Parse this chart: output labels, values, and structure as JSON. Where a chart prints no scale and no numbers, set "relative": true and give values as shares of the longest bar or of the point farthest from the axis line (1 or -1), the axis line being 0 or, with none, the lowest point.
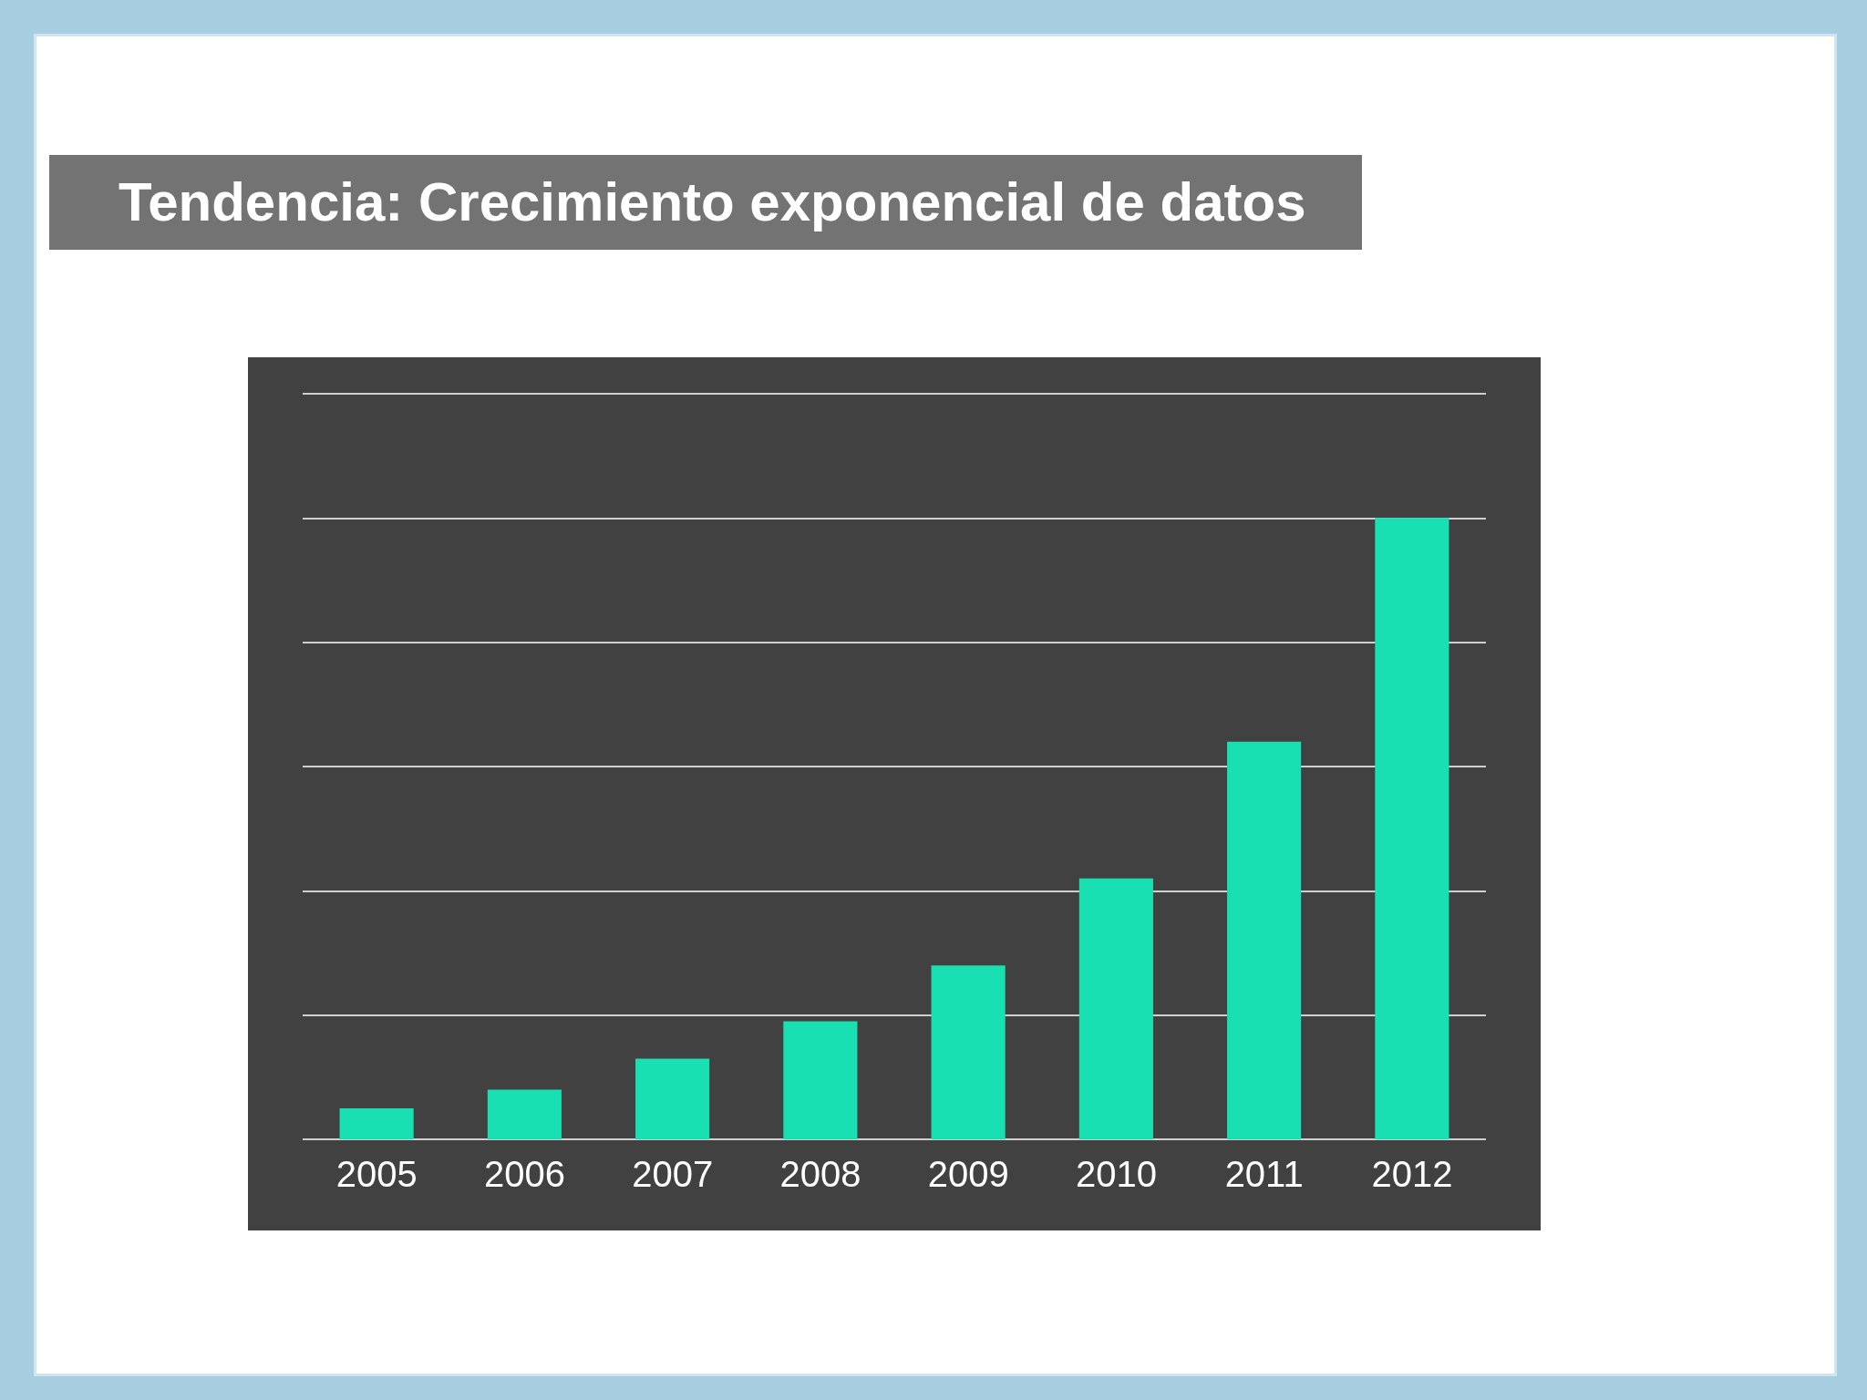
{
  "chart_data": {
    "type": "bar",
    "title": "Tendencia: Crecimiento exponencial de datos",
    "categories": [
      "2005",
      "2006",
      "2007",
      "2008",
      "2009",
      "2010",
      "2011",
      "2012"
    ],
    "values": [
      0.05,
      0.08,
      0.13,
      0.19,
      0.28,
      0.42,
      0.64,
      1
    ],
    "color": "#19e0b2",
    "relative": true,
    "grid": "y"
  }
}
